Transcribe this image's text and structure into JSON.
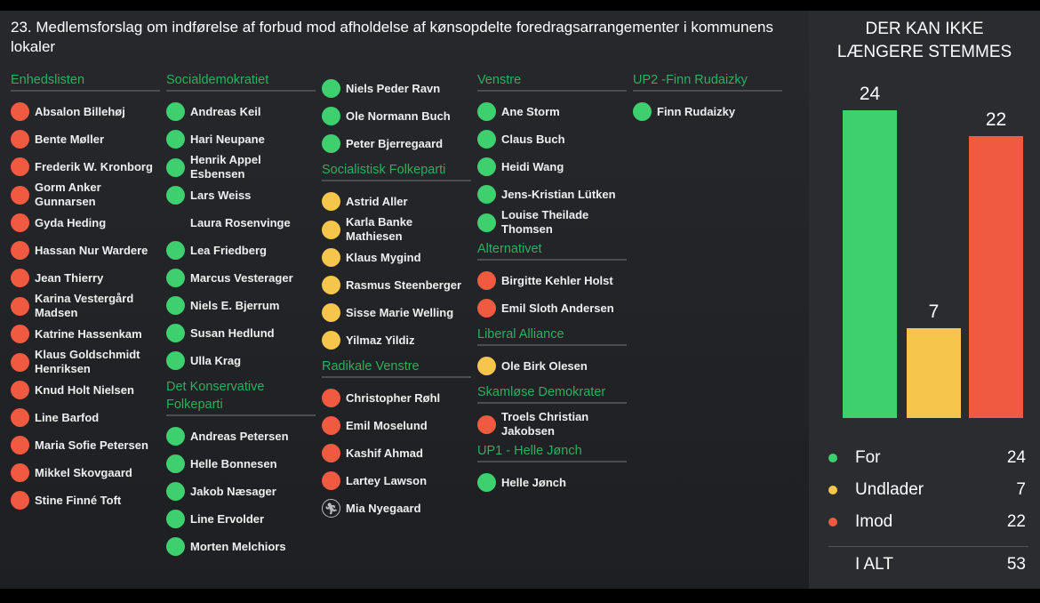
{
  "title": "23. Medlemsforslag om indførelse af forbud mod afholdelse af kønsopdelte foredragsarrangementer i kommunens lokaler",
  "colors": {
    "for": "#3ecf6e",
    "undlader": "#f5c54c",
    "imod": "#ef5a41"
  },
  "columns": [
    [
      {
        "party": "Enhedslisten",
        "members": [
          {
            "name": "Absalon Billehøj",
            "vote": "imod"
          },
          {
            "name": "Bente Møller",
            "vote": "imod"
          },
          {
            "name": "Frederik W. Kronborg",
            "vote": "imod"
          },
          {
            "name": "Gorm Anker Gunnarsen",
            "vote": "imod"
          },
          {
            "name": "Gyda Heding",
            "vote": "imod"
          },
          {
            "name": "Hassan Nur Wardere",
            "vote": "imod"
          },
          {
            "name": "Jean Thierry",
            "vote": "imod"
          },
          {
            "name": "Karina Vestergård Madsen",
            "vote": "imod"
          },
          {
            "name": "Katrine Hassenkam",
            "vote": "imod"
          },
          {
            "name": "Klaus Goldschmidt Henriksen",
            "vote": "imod"
          },
          {
            "name": "Knud Holt Nielsen",
            "vote": "imod"
          },
          {
            "name": "Line Barfod",
            "vote": "imod"
          },
          {
            "name": "Maria Sofie Petersen",
            "vote": "imod"
          },
          {
            "name": "Mikkel Skovgaard",
            "vote": "imod"
          },
          {
            "name": "Stine Finné Toft",
            "vote": "imod"
          }
        ]
      }
    ],
    [
      {
        "party": "Socialdemokratiet",
        "members": [
          {
            "name": "Andreas Keil",
            "vote": "for"
          },
          {
            "name": "Hari Neupane",
            "vote": "for"
          },
          {
            "name": "Henrik Appel Esbensen",
            "vote": "for"
          },
          {
            "name": "Lars Weiss",
            "vote": "for"
          },
          {
            "name": "Laura Rosenvinge",
            "vote": "none"
          },
          {
            "name": "Lea Friedberg",
            "vote": "for"
          },
          {
            "name": "Marcus Vesterager",
            "vote": "for"
          },
          {
            "name": "Niels E. Bjerrum",
            "vote": "for"
          },
          {
            "name": "Susan Hedlund",
            "vote": "for"
          },
          {
            "name": "Ulla Krag",
            "vote": "for"
          }
        ]
      },
      {
        "party": "Det Konservative Folkeparti",
        "members": [
          {
            "name": "Andreas Petersen",
            "vote": "for"
          },
          {
            "name": "Helle Bonnesen",
            "vote": "for"
          },
          {
            "name": "Jakob Næsager",
            "vote": "for"
          },
          {
            "name": "Line Ervolder",
            "vote": "for"
          },
          {
            "name": "Morten Melchiors",
            "vote": "for"
          }
        ]
      }
    ],
    [
      {
        "party": "",
        "members": [
          {
            "name": "Niels Peder Ravn",
            "vote": "for"
          },
          {
            "name": "Ole Normann Buch",
            "vote": "for"
          },
          {
            "name": "Peter Bjerregaard",
            "vote": "for"
          }
        ]
      },
      {
        "party": "Socialistisk Folkeparti",
        "members": [
          {
            "name": "Astrid Aller",
            "vote": "undlader"
          },
          {
            "name": "Karla Banke Mathiesen",
            "vote": "undlader"
          },
          {
            "name": "Klaus Mygind",
            "vote": "undlader"
          },
          {
            "name": "Rasmus Steenberger",
            "vote": "undlader"
          },
          {
            "name": "Sisse Marie Welling",
            "vote": "undlader"
          },
          {
            "name": "Yilmaz Yildiz",
            "vote": "undlader"
          }
        ]
      },
      {
        "party": "Radikale Venstre",
        "members": [
          {
            "name": "Christopher Røhl",
            "vote": "imod"
          },
          {
            "name": "Emil Moselund",
            "vote": "imod"
          },
          {
            "name": "Kashif Ahmad",
            "vote": "imod"
          },
          {
            "name": "Lartey Lawson",
            "vote": "imod"
          },
          {
            "name": "Mia Nyegaard",
            "vote": "absent"
          }
        ]
      }
    ],
    [
      {
        "party": "Venstre",
        "members": [
          {
            "name": "Ane Storm",
            "vote": "for"
          },
          {
            "name": "Claus Buch",
            "vote": "for"
          },
          {
            "name": "Heidi Wang",
            "vote": "for"
          },
          {
            "name": "Jens-Kristian Lütken",
            "vote": "for"
          },
          {
            "name": "Louise Theilade Thomsen",
            "vote": "for"
          }
        ]
      },
      {
        "party": "Alternativet",
        "members": [
          {
            "name": "Birgitte Kehler Holst",
            "vote": "imod"
          },
          {
            "name": "Emil Sloth Andersen",
            "vote": "imod"
          }
        ]
      },
      {
        "party": "Liberal Alliance",
        "members": [
          {
            "name": "Ole Birk Olesen",
            "vote": "undlader"
          }
        ]
      },
      {
        "party": "Skamløse Demokrater",
        "members": [
          {
            "name": "Troels Christian Jakobsen",
            "vote": "imod"
          }
        ]
      },
      {
        "party": "UP1 - Helle Jønch",
        "members": [
          {
            "name": "Helle Jønch",
            "vote": "for"
          }
        ]
      }
    ],
    [
      {
        "party": "UP2 -Finn Rudaizky",
        "members": [
          {
            "name": "Finn Rudaizky",
            "vote": "for"
          }
        ]
      }
    ]
  ],
  "result": {
    "status": "DER KAN IKKE LÆNGERE STEMMES",
    "bars": [
      {
        "key": "for",
        "label": "For",
        "value": 24
      },
      {
        "key": "undlader",
        "label": "Undlader",
        "value": 7
      },
      {
        "key": "imod",
        "label": "Imod",
        "value": 22
      }
    ],
    "total_label": "I ALT",
    "total": 53
  }
}
